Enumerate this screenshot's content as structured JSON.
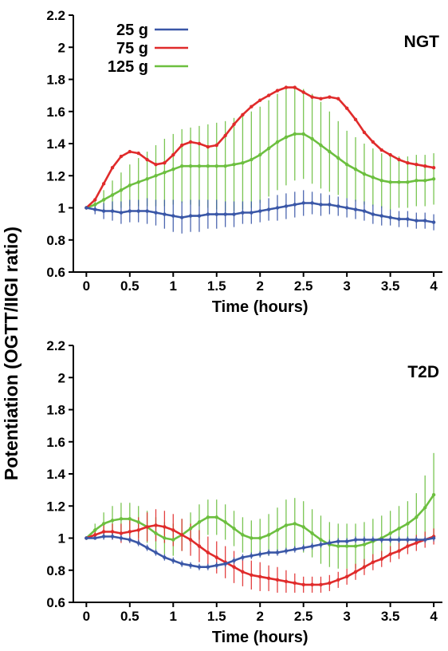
{
  "figure": {
    "ylabel": "Potentiation (OGTT/IIGI ratio)"
  },
  "chart_data": [
    {
      "type": "line",
      "panel_label": "NGT",
      "xlabel": "Time (hours)",
      "xlim": [
        -0.15,
        4.1
      ],
      "ylim": [
        0.6,
        2.2
      ],
      "xticks": [
        0,
        0.5,
        1,
        1.5,
        2,
        2.5,
        3,
        3.5,
        4
      ],
      "xtick_labels": [
        "0",
        "0.5",
        "1",
        "1.5",
        "2",
        "2.5",
        "3",
        "3.5",
        "4"
      ],
      "yticks": [
        0.6,
        0.8,
        1,
        1.2,
        1.4,
        1.6,
        1.8,
        2,
        2.2
      ],
      "ytick_labels": [
        "0.6",
        "0.8",
        "1",
        "1.2",
        "1.4",
        "1.6",
        "1.8",
        "2",
        "2.2"
      ],
      "legend": {
        "placement": "top-left"
      },
      "x": [
        0,
        0.1,
        0.2,
        0.3,
        0.4,
        0.5,
        0.6,
        0.7,
        0.8,
        0.9,
        1.0,
        1.1,
        1.2,
        1.3,
        1.4,
        1.5,
        1.6,
        1.7,
        1.8,
        1.9,
        2.0,
        2.1,
        2.2,
        2.3,
        2.4,
        2.5,
        2.6,
        2.7,
        2.8,
        2.9,
        3.0,
        3.1,
        3.2,
        3.3,
        3.4,
        3.5,
        3.6,
        3.7,
        3.8,
        3.9,
        4.0
      ],
      "series": [
        {
          "name": "25 g",
          "color": "#3a57a7",
          "values": [
            1.0,
            0.99,
            0.98,
            0.98,
            0.97,
            0.98,
            0.98,
            0.98,
            0.97,
            0.96,
            0.95,
            0.94,
            0.95,
            0.95,
            0.96,
            0.96,
            0.96,
            0.96,
            0.97,
            0.97,
            0.98,
            0.99,
            1.0,
            1.01,
            1.02,
            1.03,
            1.03,
            1.02,
            1.02,
            1.01,
            1.0,
            0.99,
            0.98,
            0.96,
            0.95,
            0.94,
            0.93,
            0.93,
            0.92,
            0.92,
            0.91
          ],
          "err": [
            0.0,
            0.03,
            0.05,
            0.06,
            0.07,
            0.07,
            0.07,
            0.08,
            0.08,
            0.09,
            0.1,
            0.1,
            0.1,
            0.1,
            0.09,
            0.09,
            0.08,
            0.08,
            0.07,
            0.07,
            0.07,
            0.07,
            0.08,
            0.08,
            0.08,
            0.08,
            0.07,
            0.07,
            0.06,
            0.06,
            0.06,
            0.06,
            0.06,
            0.06,
            0.06,
            0.05,
            0.05,
            0.05,
            0.05,
            0.05,
            0.05
          ]
        },
        {
          "name": "75 g",
          "color": "#e02b2b",
          "values": [
            1.0,
            1.05,
            1.15,
            1.25,
            1.32,
            1.35,
            1.34,
            1.3,
            1.27,
            1.28,
            1.33,
            1.39,
            1.41,
            1.4,
            1.38,
            1.39,
            1.45,
            1.52,
            1.58,
            1.63,
            1.67,
            1.7,
            1.73,
            1.75,
            1.75,
            1.72,
            1.69,
            1.68,
            1.69,
            1.68,
            1.62,
            1.55,
            1.47,
            1.41,
            1.36,
            1.33,
            1.3,
            1.28,
            1.27,
            1.26,
            1.25
          ]
        },
        {
          "name": "125 g",
          "color": "#6cbf3f",
          "values": [
            1.0,
            1.02,
            1.05,
            1.08,
            1.11,
            1.14,
            1.16,
            1.18,
            1.2,
            1.22,
            1.24,
            1.26,
            1.26,
            1.26,
            1.26,
            1.26,
            1.26,
            1.27,
            1.28,
            1.3,
            1.33,
            1.37,
            1.41,
            1.44,
            1.46,
            1.46,
            1.43,
            1.39,
            1.35,
            1.31,
            1.27,
            1.24,
            1.21,
            1.19,
            1.17,
            1.16,
            1.16,
            1.16,
            1.17,
            1.17,
            1.18
          ],
          "err": [
            0.0,
            0.03,
            0.06,
            0.09,
            0.11,
            0.13,
            0.15,
            0.17,
            0.19,
            0.21,
            0.22,
            0.23,
            0.24,
            0.25,
            0.26,
            0.27,
            0.28,
            0.29,
            0.29,
            0.3,
            0.3,
            0.3,
            0.3,
            0.3,
            0.29,
            0.28,
            0.28,
            0.27,
            0.25,
            0.23,
            0.21,
            0.2,
            0.19,
            0.18,
            0.17,
            0.17,
            0.16,
            0.16,
            0.16,
            0.16,
            0.16
          ]
        }
      ]
    },
    {
      "type": "line",
      "panel_label": "T2D",
      "xlabel": "Time (hours)",
      "xlim": [
        -0.15,
        4.1
      ],
      "ylim": [
        0.6,
        2.2
      ],
      "xticks": [
        0,
        0.5,
        1,
        1.5,
        2,
        2.5,
        3,
        3.5,
        4
      ],
      "xtick_labels": [
        "0",
        "0.5",
        "1",
        "1.5",
        "2",
        "2.5",
        "3",
        "3.5",
        "4"
      ],
      "yticks": [
        0.6,
        0.8,
        1,
        1.2,
        1.4,
        1.6,
        1.8,
        2,
        2.2
      ],
      "ytick_labels": [
        "0.6",
        "0.8",
        "1",
        "1.2",
        "1.4",
        "1.6",
        "1.8",
        "2",
        "2.2"
      ],
      "x": [
        0,
        0.1,
        0.2,
        0.3,
        0.4,
        0.5,
        0.6,
        0.7,
        0.8,
        0.9,
        1.0,
        1.1,
        1.2,
        1.3,
        1.4,
        1.5,
        1.6,
        1.7,
        1.8,
        1.9,
        2.0,
        2.1,
        2.2,
        2.3,
        2.4,
        2.5,
        2.6,
        2.7,
        2.8,
        2.9,
        3.0,
        3.1,
        3.2,
        3.3,
        3.4,
        3.5,
        3.6,
        3.7,
        3.8,
        3.9,
        4.0
      ],
      "series": [
        {
          "name": "25 g",
          "color": "#3a57a7",
          "values": [
            1.0,
            1.0,
            1.01,
            1.01,
            1.0,
            0.99,
            0.97,
            0.94,
            0.91,
            0.88,
            0.86,
            0.84,
            0.83,
            0.82,
            0.82,
            0.83,
            0.84,
            0.86,
            0.88,
            0.89,
            0.9,
            0.91,
            0.91,
            0.92,
            0.93,
            0.94,
            0.95,
            0.96,
            0.97,
            0.98,
            0.98,
            0.99,
            0.99,
            0.99,
            0.99,
            0.99,
            0.99,
            0.99,
            0.99,
            0.99,
            1.0
          ],
          "err": [
            0.0,
            0.01,
            0.02,
            0.02,
            0.02,
            0.02,
            0.02,
            0.02,
            0.02,
            0.02,
            0.02,
            0.02,
            0.02,
            0.02,
            0.02,
            0.02,
            0.02,
            0.02,
            0.02,
            0.02,
            0.02,
            0.02,
            0.02,
            0.02,
            0.02,
            0.02,
            0.02,
            0.02,
            0.02,
            0.02,
            0.02,
            0.02,
            0.02,
            0.02,
            0.02,
            0.02,
            0.02,
            0.02,
            0.02,
            0.02,
            0.02
          ]
        },
        {
          "name": "75 g",
          "color": "#e02b2b",
          "values": [
            1.0,
            1.02,
            1.04,
            1.04,
            1.03,
            1.04,
            1.05,
            1.07,
            1.08,
            1.07,
            1.05,
            1.02,
            0.99,
            0.95,
            0.91,
            0.88,
            0.85,
            0.82,
            0.79,
            0.77,
            0.76,
            0.75,
            0.74,
            0.73,
            0.72,
            0.71,
            0.71,
            0.71,
            0.72,
            0.74,
            0.76,
            0.79,
            0.82,
            0.85,
            0.87,
            0.9,
            0.92,
            0.95,
            0.97,
            0.99,
            1.01
          ],
          "err": [
            0.0,
            0.02,
            0.04,
            0.05,
            0.06,
            0.07,
            0.08,
            0.09,
            0.1,
            0.1,
            0.1,
            0.1,
            0.1,
            0.1,
            0.1,
            0.1,
            0.1,
            0.1,
            0.09,
            0.09,
            0.09,
            0.08,
            0.08,
            0.07,
            0.06,
            0.05,
            0.05,
            0.05,
            0.05,
            0.05,
            0.05,
            0.05,
            0.05,
            0.05,
            0.05,
            0.05,
            0.05,
            0.05,
            0.05,
            0.05,
            0.05
          ]
        },
        {
          "name": "125 g",
          "color": "#6cbf3f",
          "values": [
            1.0,
            1.05,
            1.09,
            1.11,
            1.12,
            1.12,
            1.1,
            1.07,
            1.03,
            1.0,
            0.99,
            1.02,
            1.06,
            1.1,
            1.13,
            1.13,
            1.1,
            1.06,
            1.02,
            1.0,
            1.0,
            1.02,
            1.05,
            1.08,
            1.09,
            1.07,
            1.03,
            0.99,
            0.96,
            0.95,
            0.95,
            0.95,
            0.96,
            0.98,
            1.0,
            1.03,
            1.06,
            1.09,
            1.13,
            1.19,
            1.27
          ],
          "err": [
            0.0,
            0.04,
            0.07,
            0.09,
            0.1,
            0.1,
            0.1,
            0.1,
            0.1,
            0.1,
            0.1,
            0.1,
            0.1,
            0.11,
            0.11,
            0.11,
            0.11,
            0.11,
            0.11,
            0.11,
            0.12,
            0.13,
            0.14,
            0.16,
            0.16,
            0.16,
            0.15,
            0.15,
            0.14,
            0.14,
            0.14,
            0.14,
            0.14,
            0.14,
            0.14,
            0.14,
            0.14,
            0.14,
            0.15,
            0.2,
            0.26
          ]
        }
      ]
    }
  ]
}
